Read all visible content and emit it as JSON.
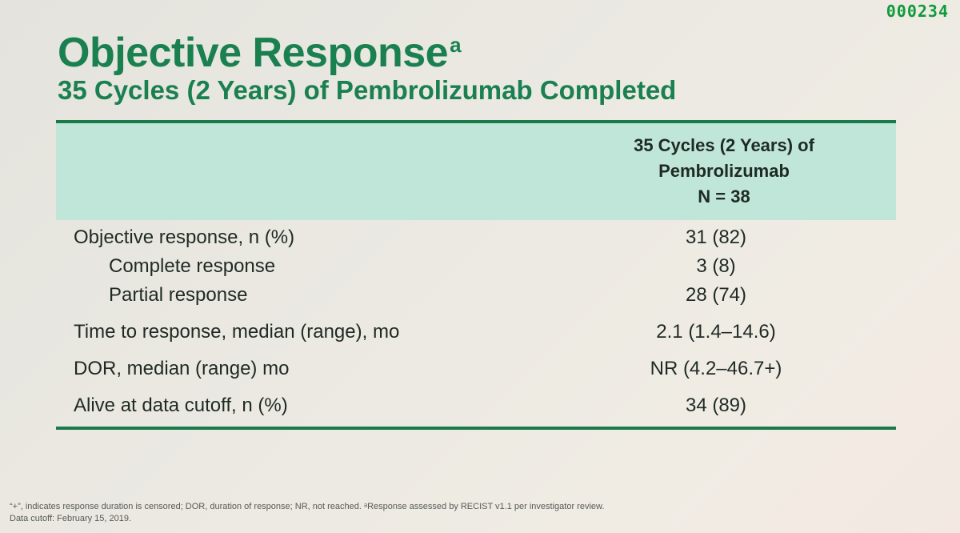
{
  "slide_number": "000234",
  "title": "Objective Response",
  "title_superscript": "a",
  "subtitle": "35 Cycles (2 Years) of Pembrolizumab Completed",
  "table": {
    "column_header": [
      "35 Cycles (2 Years) of",
      "Pembrolizumab",
      "N = 38"
    ],
    "rows": [
      {
        "label": "Objective response, n (%)",
        "value": "31 (82)"
      },
      {
        "label": "Complete response",
        "value": "3 (8)"
      },
      {
        "label": "Partial response",
        "value": "28 (74)"
      },
      {
        "label": "Time to response, median (range), mo",
        "value": "2.1 (1.4–14.6)"
      },
      {
        "label": "DOR, median (range) mo",
        "value": "NR (4.2–46.7+)"
      },
      {
        "label": "Alive at data cutoff, n (%)",
        "value": "34 (89)"
      }
    ]
  },
  "footnote": {
    "line1": "“+”, indicates response duration is censored; DOR, duration of response; NR, not reached. ᵃResponse assessed by RECIST v1.1 per investigator review.",
    "line2": "Data cutoff: February 15, 2019."
  },
  "colors": {
    "title": "#1a8050",
    "header_band": "#bfe6d8",
    "rule": "#1a7a4a",
    "slide_number": "#0f9a3c"
  }
}
